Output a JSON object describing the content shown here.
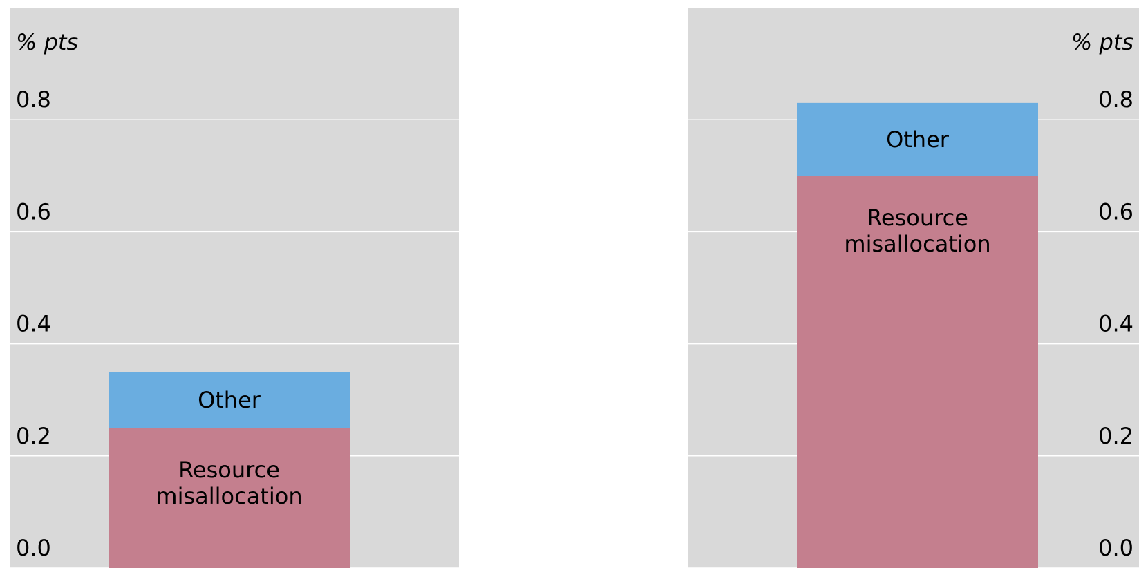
{
  "chart_data": [
    {
      "type": "bar",
      "stacked": true,
      "y_label": "% pts",
      "yaxis_side": "left",
      "categories": [
        null
      ],
      "series": [
        {
          "name": "Resource misallocation",
          "color": "#c47f8e",
          "values": [
            0.25
          ]
        },
        {
          "name": "Other",
          "color": "#6aade0",
          "values": [
            0.1
          ]
        }
      ],
      "ylim": [
        0,
        1.0
      ],
      "yticks": [
        {
          "value": 0,
          "label": "0.0"
        },
        0.2,
        0.4,
        0.6,
        0.8
      ],
      "grid": true
    },
    {
      "type": "bar",
      "stacked": true,
      "y_label": "% pts",
      "yaxis_side": "right",
      "categories": [
        null
      ],
      "series": [
        {
          "name": "Resource misallocation",
          "color": "#c47f8e",
          "values": [
            0.7
          ]
        },
        {
          "name": "Other",
          "color": "#6aade0",
          "values": [
            0.13
          ]
        }
      ],
      "ylim": [
        0,
        1.0
      ],
      "yticks": [
        {
          "value": 0,
          "label": "0.0"
        },
        0.2,
        0.4,
        0.6,
        0.8
      ],
      "grid": true
    }
  ]
}
